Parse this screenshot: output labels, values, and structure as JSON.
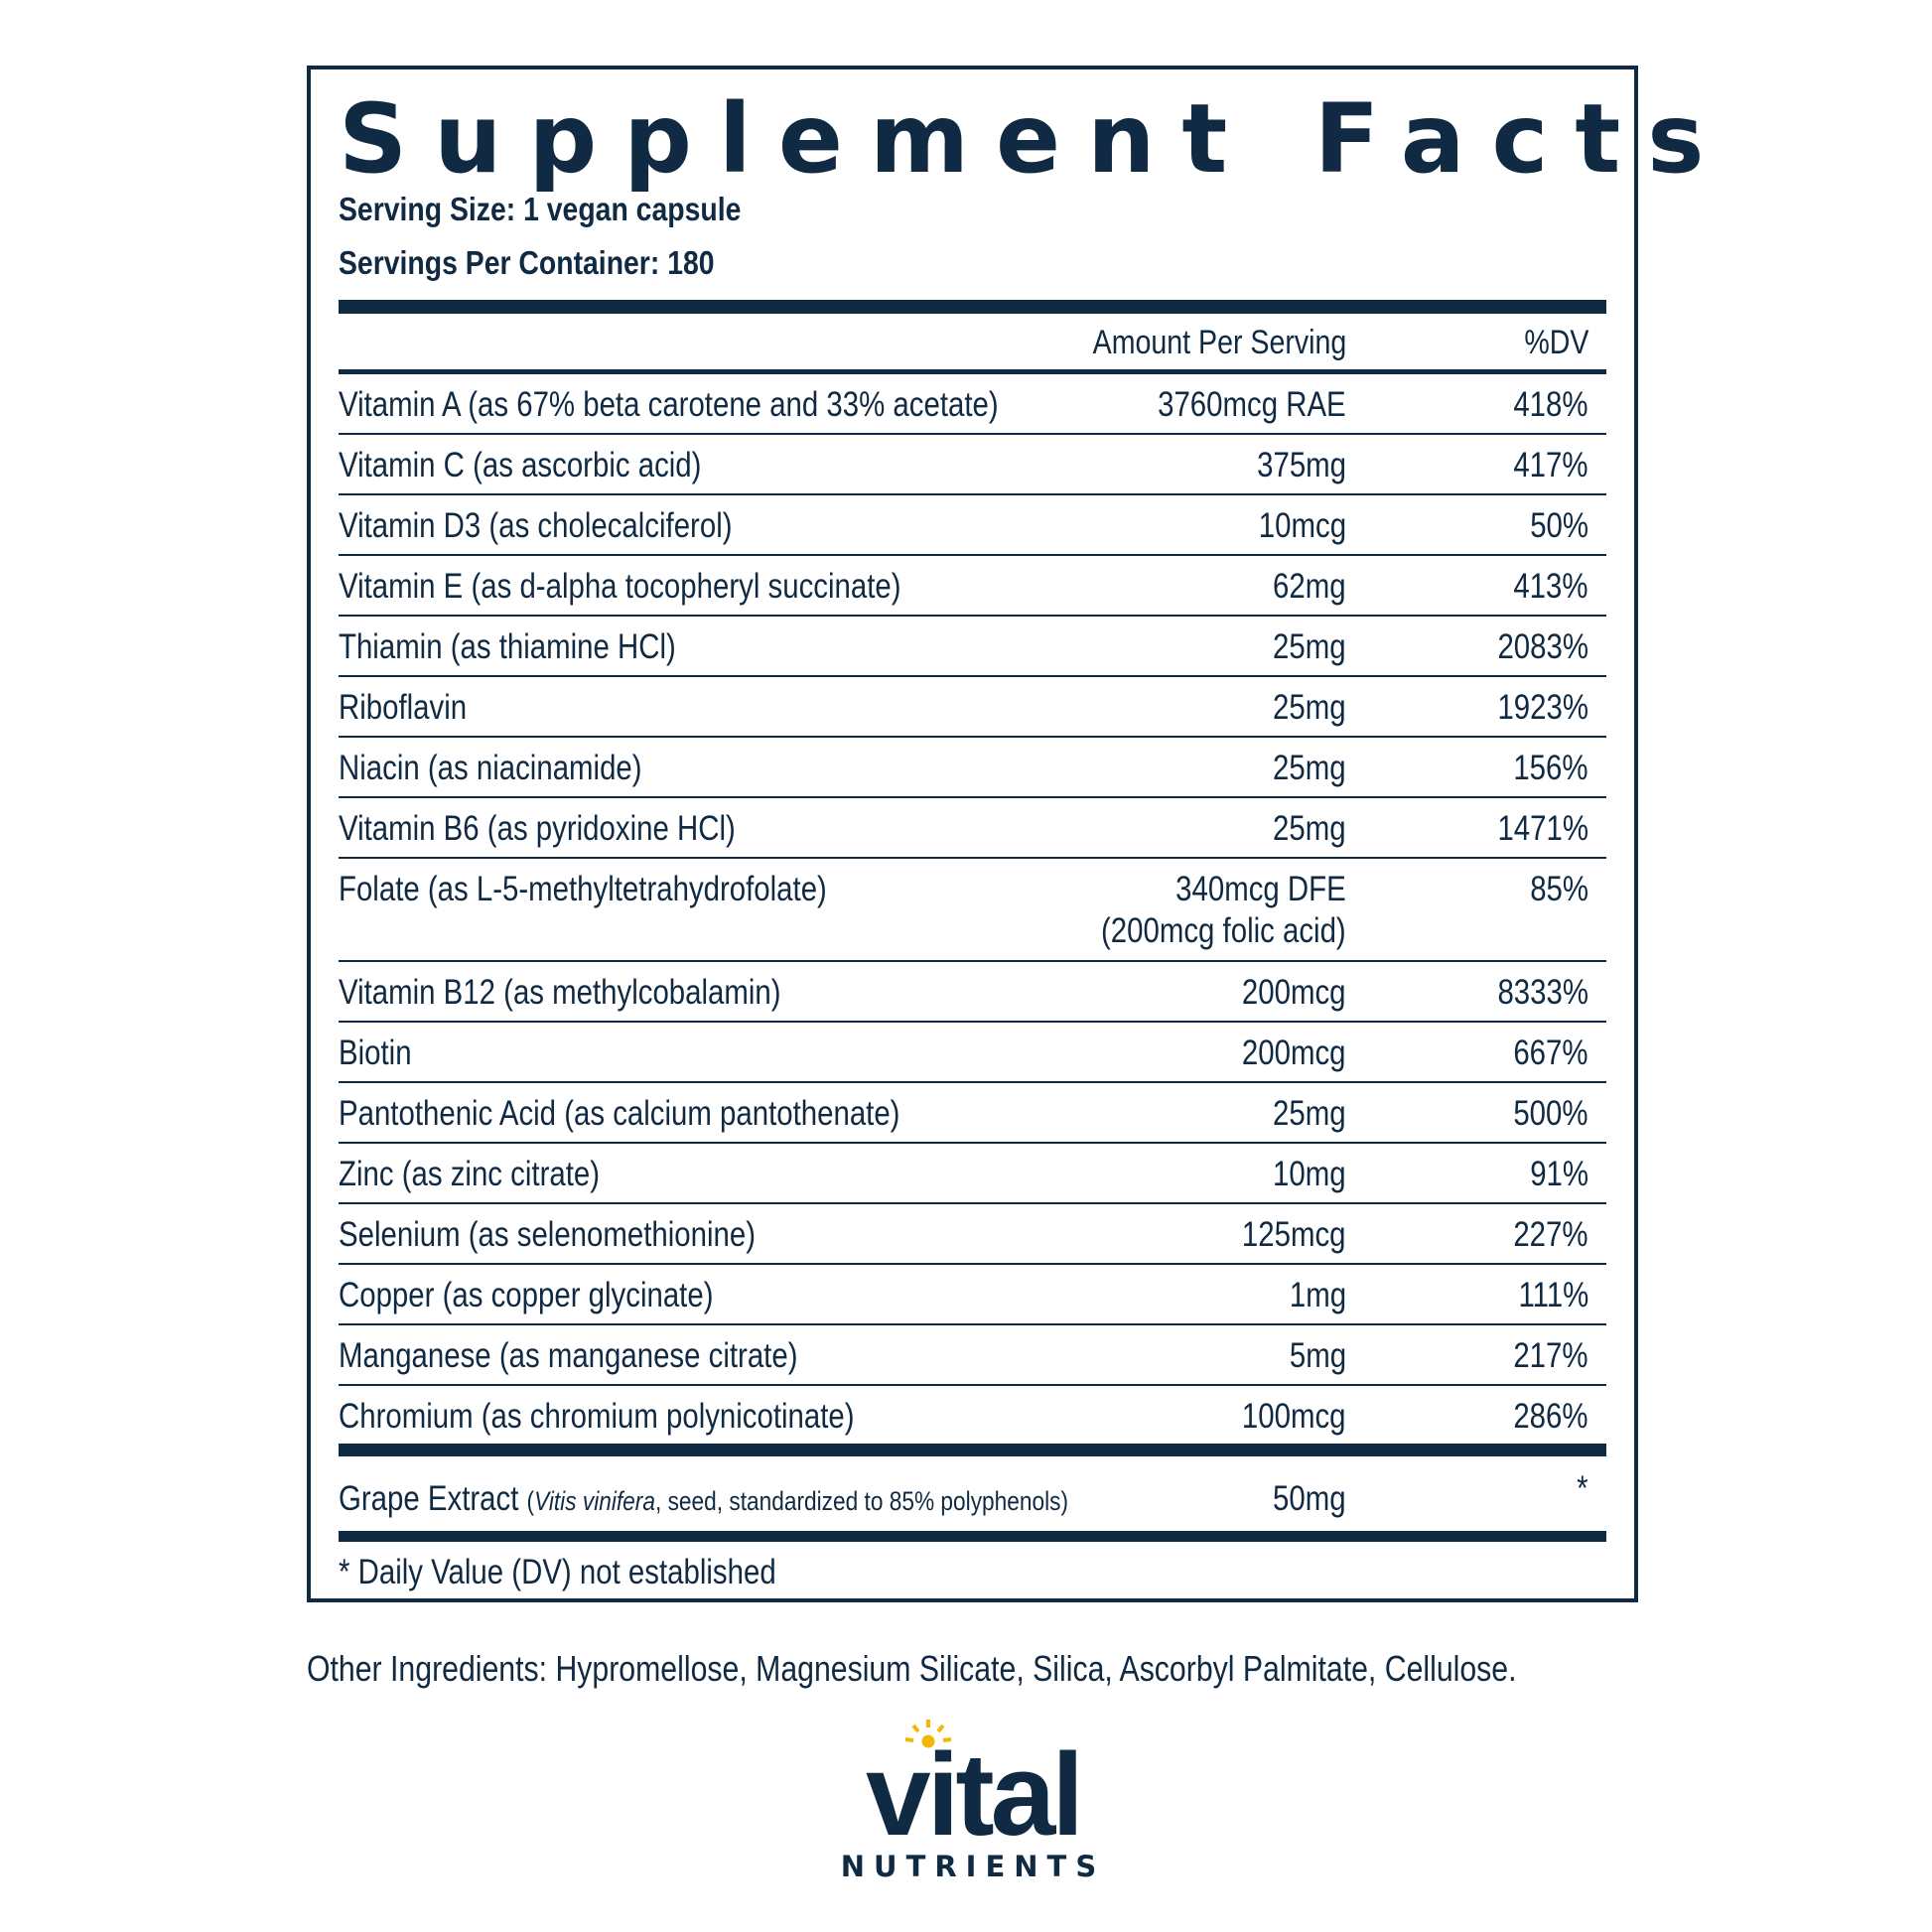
{
  "panel": {
    "title": "Supplement Facts",
    "serving_size": "Serving Size: 1 vegan capsule",
    "servings_per_container": "Servings Per Container: 180",
    "col_amount": "Amount Per Serving",
    "col_dv": "%DV",
    "rows": [
      {
        "name": "Vitamin A (as 67% beta carotene and 33% acetate)",
        "amount": "3760mcg RAE",
        "dv": "418%"
      },
      {
        "name": "Vitamin C (as ascorbic acid)",
        "amount": "375mg",
        "dv": "417%"
      },
      {
        "name": "Vitamin D3 (as cholecalciferol)",
        "amount": "10mcg",
        "dv": "50%"
      },
      {
        "name": "Vitamin E (as d-alpha tocopheryl succinate)",
        "amount": "62mg",
        "dv": "413%"
      },
      {
        "name": "Thiamin (as thiamine HCl)",
        "amount": "25mg",
        "dv": "2083%"
      },
      {
        "name": "Riboflavin",
        "amount": "25mg",
        "dv": "1923%"
      },
      {
        "name": "Niacin (as niacinamide)",
        "amount": "25mg",
        "dv": "156%"
      },
      {
        "name": "Vitamin B6 (as pyridoxine HCl)",
        "amount": "25mg",
        "dv": "1471%"
      },
      {
        "name": "Folate (as L-5-methyltetrahydrofolate)",
        "amount": "340mcg DFE",
        "amount2": "(200mcg folic acid)",
        "dv": "85%"
      },
      {
        "name": "Vitamin B12 (as methylcobalamin)",
        "amount": "200mcg",
        "dv": "8333%"
      },
      {
        "name": "Biotin",
        "amount": "200mcg",
        "dv": "667%"
      },
      {
        "name": "Pantothenic Acid (as calcium pantothenate)",
        "amount": "25mg",
        "dv": "500%"
      },
      {
        "name": "Zinc (as zinc citrate)",
        "amount": "10mg",
        "dv": "91%"
      },
      {
        "name": "Selenium (as selenomethionine)",
        "amount": "125mcg",
        "dv": "227%"
      },
      {
        "name": "Copper (as copper glycinate)",
        "amount": "1mg",
        "dv": "111%"
      },
      {
        "name": "Manganese (as manganese citrate)",
        "amount": "5mg",
        "dv": "217%"
      },
      {
        "name": "Chromium (as chromium polynicotinate)",
        "amount": "100mcg",
        "dv": "286%"
      }
    ],
    "grape": {
      "name": "Grape Extract",
      "note_open": "(",
      "note_italic": "Vitis vinifera",
      "note_rest": ", seed, standardized to 85% polyphenols)",
      "amount": "50mg",
      "dv": "*"
    },
    "footnote": "* Daily Value (DV) not established"
  },
  "other_ingredients": "Other Ingredients: Hypromellose, Magnesium Silicate, Silica, Ascorbyl Palmitate, Cellulose.",
  "logo": {
    "word": "vital",
    "sub": "NUTRIENTS"
  },
  "colors": {
    "ink": "#102a43",
    "sun": "#f2b705"
  }
}
